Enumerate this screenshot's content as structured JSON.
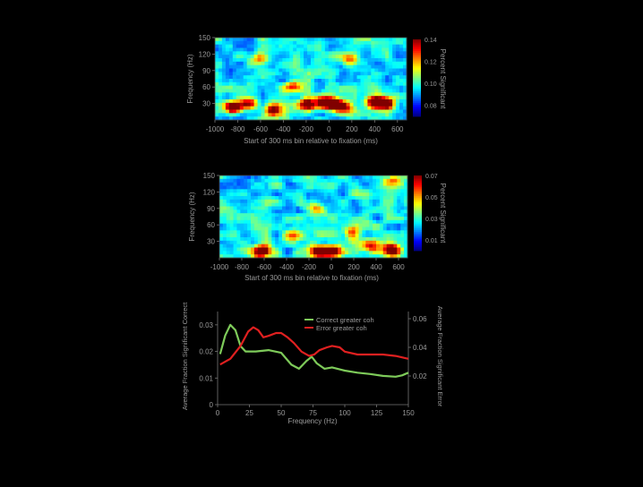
{
  "chart_data": [
    {
      "type": "heatmap",
      "xlabel": "Start of 300 ms bin relative to fixation (ms)",
      "ylabel": "Frequency (Hz)",
      "colorbar_label": "Percent Significant",
      "x_range": [
        -1000,
        700
      ],
      "y_range": [
        0,
        150
      ],
      "xticks": [
        "-1000",
        "-800",
        "-600",
        "-400",
        "-200",
        "0",
        "200",
        "400",
        "600"
      ],
      "yticks": [
        "150",
        "120",
        "90",
        "60",
        "30"
      ],
      "colorbar_ticks": [
        "0.14",
        "0.12",
        "0.10",
        "0.08"
      ],
      "colorbar_range": [
        0.07,
        0.14
      ],
      "colormap": "jet",
      "hotspots": [
        {
          "x": -840,
          "y": 22,
          "v": 1.0
        },
        {
          "x": -700,
          "y": 30,
          "v": 0.75
        },
        {
          "x": -480,
          "y": 18,
          "v": 0.7
        },
        {
          "x": -180,
          "y": 28,
          "v": 0.75
        },
        {
          "x": -30,
          "y": 32,
          "v": 0.9
        },
        {
          "x": 60,
          "y": 28,
          "v": 0.95
        },
        {
          "x": 160,
          "y": 22,
          "v": 0.6
        },
        {
          "x": 420,
          "y": 34,
          "v": 1.0
        },
        {
          "x": 520,
          "y": 30,
          "v": 0.85
        },
        {
          "x": -300,
          "y": 62,
          "v": 0.55
        },
        {
          "x": 200,
          "y": 110,
          "v": 0.5
        },
        {
          "x": -600,
          "y": 110,
          "v": 0.45
        }
      ]
    },
    {
      "type": "heatmap",
      "xlabel": "Start of 300 ms bin relative to fixation (ms)",
      "ylabel": "Frequency (Hz)",
      "colorbar_label": "Percent Significant",
      "x_range": [
        -1000,
        600
      ],
      "y_range": [
        0,
        150
      ],
      "xticks": [
        "-1000",
        "-800",
        "-600",
        "-400",
        "-200",
        "0",
        "200",
        "400",
        "600"
      ],
      "yticks": [
        "150",
        "120",
        "90",
        "60",
        "30"
      ],
      "colorbar_ticks": [
        "0.07",
        "0.05",
        "0.03",
        "0.01"
      ],
      "colorbar_range": [
        0.0,
        0.07
      ],
      "colormap": "jet",
      "hotspots": [
        {
          "x": -640,
          "y": 12,
          "v": 0.9
        },
        {
          "x": -160,
          "y": 12,
          "v": 0.85
        },
        {
          "x": -40,
          "y": 12,
          "v": 1.0
        },
        {
          "x": 460,
          "y": 14,
          "v": 1.0
        },
        {
          "x": 280,
          "y": 22,
          "v": 0.6
        },
        {
          "x": -380,
          "y": 40,
          "v": 0.5
        },
        {
          "x": 460,
          "y": 140,
          "v": 0.55
        },
        {
          "x": -200,
          "y": 90,
          "v": 0.45
        },
        {
          "x": 120,
          "y": 45,
          "v": 0.5
        }
      ]
    },
    {
      "type": "line",
      "xlabel": "Frequency (Hz)",
      "ylabel_left": "Average Fraction Significant Correct",
      "ylabel_right": "Average Fraction Significant Error",
      "xlim": [
        0,
        150
      ],
      "ylim_left": [
        0,
        0.035
      ],
      "ylim_right": [
        0,
        0.065
      ],
      "xticks": [
        "0",
        "25",
        "50",
        "75",
        "100",
        "125",
        "150"
      ],
      "yticks_left": [
        "0.03",
        "0.02",
        "0.01",
        "0"
      ],
      "yticks_right": [
        "0.06",
        "0.04",
        "0.02"
      ],
      "legend_position": "top-right",
      "series": [
        {
          "name": "Correct greater coh",
          "color": "#7ecb5a",
          "axis": "left",
          "x": [
            2,
            6,
            10,
            14,
            18,
            22,
            26,
            30,
            40,
            50,
            58,
            64,
            70,
            74,
            78,
            84,
            90,
            100,
            110,
            120,
            130,
            140,
            145,
            150
          ],
          "y": [
            0.019,
            0.026,
            0.03,
            0.028,
            0.022,
            0.02,
            0.02,
            0.02,
            0.0205,
            0.0195,
            0.015,
            0.0135,
            0.0165,
            0.018,
            0.0155,
            0.0135,
            0.014,
            0.0128,
            0.012,
            0.0115,
            0.0108,
            0.0105,
            0.011,
            0.012
          ]
        },
        {
          "name": "Error greater coh",
          "color": "#e02020",
          "axis": "right",
          "x": [
            2,
            10,
            18,
            24,
            28,
            32,
            36,
            40,
            46,
            50,
            55,
            60,
            66,
            72,
            76,
            80,
            86,
            90,
            96,
            100,
            110,
            120,
            130,
            140,
            145,
            150
          ],
          "y": [
            0.028,
            0.032,
            0.041,
            0.051,
            0.054,
            0.052,
            0.047,
            0.048,
            0.05,
            0.05,
            0.047,
            0.043,
            0.037,
            0.034,
            0.035,
            0.038,
            0.04,
            0.041,
            0.04,
            0.037,
            0.035,
            0.035,
            0.035,
            0.034,
            0.033,
            0.032
          ]
        }
      ]
    }
  ]
}
